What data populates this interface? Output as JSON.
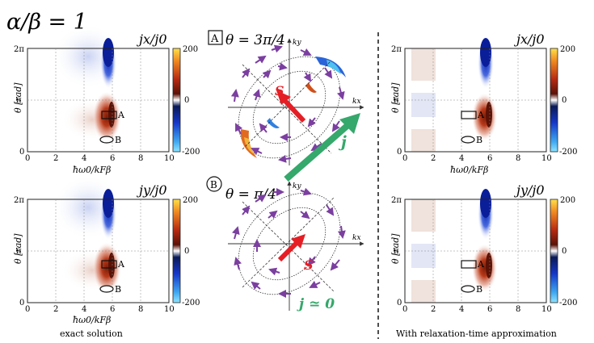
{
  "figure": {
    "ratio_label": "α/β = 1",
    "left_caption": "exact solution",
    "right_caption": "With relaxation-time approximation"
  },
  "panels": [
    {
      "id": "exact-jx",
      "title": "jx/j0"
    },
    {
      "id": "exact-jy",
      "title": "jy/j0"
    },
    {
      "id": "rta-jx",
      "title": "jx/j0"
    },
    {
      "id": "rta-jy",
      "title": "jy/j0"
    }
  ],
  "axes": {
    "xlabel": "ħω0/kFβ",
    "ylabel": "θ [rad]",
    "xticks": [
      "0",
      "2",
      "4",
      "6",
      "8",
      "10"
    ],
    "yticks": [
      "0",
      "π",
      "2π"
    ]
  },
  "colorbar": {
    "ticks": [
      "200",
      "0",
      "-200"
    ]
  },
  "markers": {
    "a": "A",
    "b": "B"
  },
  "diagrams": {
    "top": {
      "badge": "A",
      "theta": "θ = 3π/4",
      "kx": "kx",
      "ky": "ky",
      "spin": "S",
      "current": "j"
    },
    "bottom": {
      "badge": "B",
      "theta": "θ = π/4",
      "kx": "kx",
      "ky": "ky",
      "spin": "S",
      "current": "j ≃ 0"
    }
  },
  "colors": {
    "red_arrow": "#e51e25",
    "green_arrow": "#35a86b",
    "purple_arrow": "#7b3fa0",
    "cb_pos": "#c8361a",
    "cb_neg": "#1a3fd0"
  }
}
